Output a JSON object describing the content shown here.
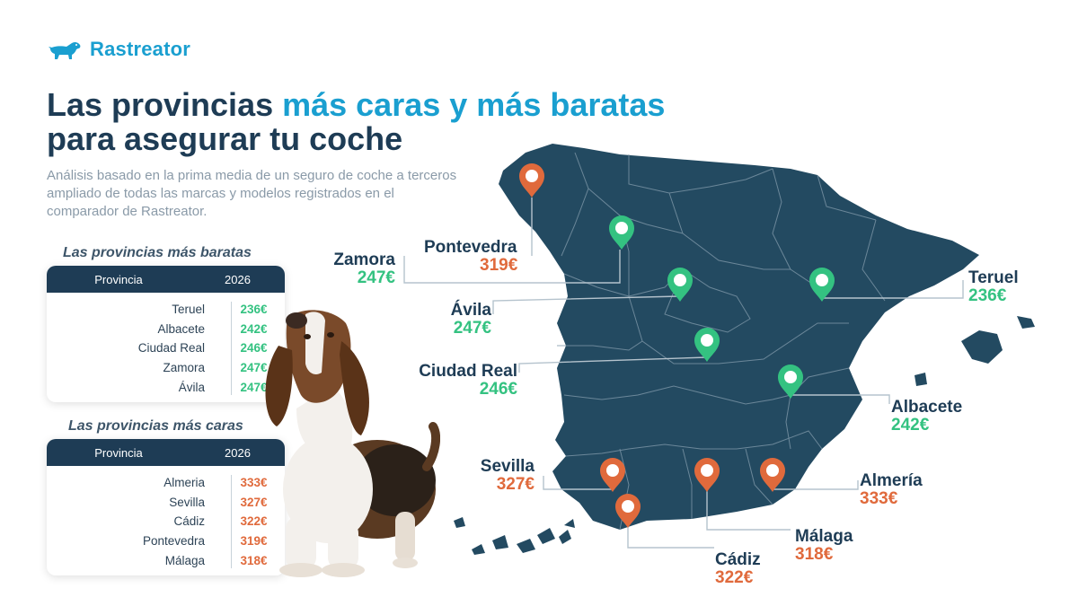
{
  "brand": {
    "name": "Rastreator",
    "icon": "dog-logo-icon",
    "color": "#1a9fd0"
  },
  "title": {
    "line1_plain": "Las provincias ",
    "line1_accent": "más caras y más baratas",
    "line2": "para asegurar tu coche"
  },
  "subtitle": "Análisis basado en la prima media de un seguro de coche a terceros ampliado de todas las marcas y modelos registrados en el comparador de Rastreator.",
  "cheapest_table": {
    "title": "Las provincias más baratas",
    "headers": [
      "Provincia",
      "2026"
    ],
    "rows": [
      {
        "province": "Teruel",
        "price": "236€"
      },
      {
        "province": "Albacete",
        "price": "242€"
      },
      {
        "province": "Ciudad Real",
        "price": "246€"
      },
      {
        "province": "Zamora",
        "price": "247€"
      },
      {
        "province": "Ávila",
        "price": "247€"
      }
    ]
  },
  "expensive_table": {
    "title": "Las provincias más caras",
    "headers": [
      "Provincia",
      "2026"
    ],
    "rows": [
      {
        "province": "Almeria",
        "price": "333€"
      },
      {
        "province": "Sevilla",
        "price": "327€"
      },
      {
        "province": "Cádiz",
        "price": "322€"
      },
      {
        "province": "Pontevedra",
        "price": "319€"
      },
      {
        "province": "Málaga",
        "price": "318€"
      }
    ]
  },
  "map_labels": {
    "zamora": {
      "name": "Zamora",
      "price": "247€",
      "tier": "cheap"
    },
    "pontevedra": {
      "name": "Pontevedra",
      "price": "319€",
      "tier": "expensive"
    },
    "avila": {
      "name": "Ávila",
      "price": "247€",
      "tier": "cheap"
    },
    "ciudad_real": {
      "name": "Ciudad Real",
      "price": "246€",
      "tier": "cheap"
    },
    "teruel": {
      "name": "Teruel",
      "price": "236€",
      "tier": "cheap"
    },
    "albacete": {
      "name": "Albacete",
      "price": "242€",
      "tier": "cheap"
    },
    "sevilla": {
      "name": "Sevilla",
      "price": "327€",
      "tier": "expensive"
    },
    "almeria": {
      "name": "Almería",
      "price": "333€",
      "tier": "expensive"
    },
    "malaga": {
      "name": "Málaga",
      "price": "318€",
      "tier": "expensive"
    },
    "cadiz": {
      "name": "Cádiz",
      "price": "322€",
      "tier": "expensive"
    }
  },
  "colors": {
    "navy": "#1e3c55",
    "map": "#234a61",
    "cheap": "#34c281",
    "expensive": "#e06a3c"
  }
}
